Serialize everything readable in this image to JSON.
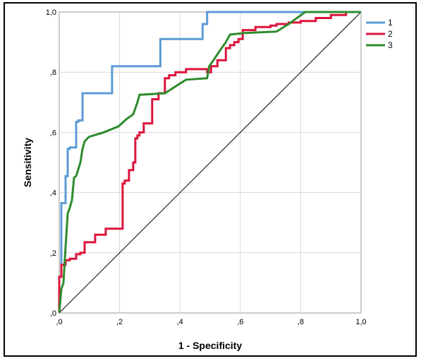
{
  "chart_data": {
    "type": "line",
    "xlabel": "1 - Specificity",
    "ylabel": "Sensitivity",
    "xlim": [
      0,
      1
    ],
    "ylim": [
      0,
      1
    ],
    "x_ticks": [
      {
        "value": 0.0,
        "label": ",0"
      },
      {
        "value": 0.2,
        "label": ",2"
      },
      {
        "value": 0.4,
        "label": ",4"
      },
      {
        "value": 0.6,
        "label": ",6"
      },
      {
        "value": 0.8,
        "label": ",8"
      },
      {
        "value": 1.0,
        "label": "1,0"
      }
    ],
    "y_ticks": [
      {
        "value": 0.0,
        "label": ",0"
      },
      {
        "value": 0.2,
        "label": ",2"
      },
      {
        "value": 0.4,
        "label": ",4"
      },
      {
        "value": 0.6,
        "label": ",6"
      },
      {
        "value": 0.8,
        "label": ",8"
      },
      {
        "value": 1.0,
        "label": "1,0"
      }
    ],
    "grid": true,
    "legend_position": "top-right",
    "reference_line": {
      "x": [
        0,
        1
      ],
      "y": [
        0,
        1
      ],
      "color": "#000000"
    },
    "series": [
      {
        "name": "1",
        "color": "#5b9bd5",
        "x": [
          0,
          0,
          0.007,
          0.007,
          0.021,
          0.021,
          0.028,
          0.028,
          0.035,
          0.035,
          0.056,
          0.056,
          0.063,
          0.063,
          0.077,
          0.077,
          0.175,
          0.175,
          0.335,
          0.335,
          0.475,
          0.475,
          0.49,
          0.49,
          1.0
        ],
        "y": [
          0,
          0.12,
          0.12,
          0.365,
          0.365,
          0.455,
          0.455,
          0.545,
          0.545,
          0.55,
          0.55,
          0.635,
          0.635,
          0.64,
          0.64,
          0.73,
          0.73,
          0.82,
          0.82,
          0.91,
          0.91,
          0.96,
          0.96,
          1.0,
          1.0
        ]
      },
      {
        "name": "2",
        "color": "#dc143c",
        "x": [
          0,
          0,
          0.007,
          0.007,
          0.021,
          0.021,
          0.035,
          0.035,
          0.056,
          0.056,
          0.07,
          0.07,
          0.084,
          0.084,
          0.119,
          0.119,
          0.154,
          0.154,
          0.21,
          0.21,
          0.217,
          0.217,
          0.231,
          0.231,
          0.245,
          0.245,
          0.252,
          0.252,
          0.259,
          0.259,
          0.266,
          0.266,
          0.28,
          0.28,
          0.308,
          0.308,
          0.329,
          0.329,
          0.35,
          0.35,
          0.364,
          0.364,
          0.385,
          0.385,
          0.42,
          0.42,
          0.49,
          0.49,
          0.503,
          0.503,
          0.524,
          0.524,
          0.552,
          0.552,
          0.566,
          0.566,
          0.58,
          0.58,
          0.594,
          0.594,
          0.608,
          0.608,
          0.65,
          0.65,
          0.7,
          0.7,
          0.72,
          0.72,
          0.76,
          0.76,
          0.8,
          0.8,
          0.85,
          0.85,
          0.9,
          0.9,
          0.95,
          0.95,
          1.0
        ],
        "y": [
          0,
          0.12,
          0.12,
          0.16,
          0.16,
          0.175,
          0.175,
          0.18,
          0.18,
          0.195,
          0.195,
          0.2,
          0.2,
          0.235,
          0.235,
          0.26,
          0.26,
          0.28,
          0.28,
          0.43,
          0.43,
          0.44,
          0.44,
          0.475,
          0.475,
          0.5,
          0.5,
          0.58,
          0.58,
          0.59,
          0.59,
          0.6,
          0.6,
          0.63,
          0.63,
          0.71,
          0.71,
          0.73,
          0.73,
          0.78,
          0.78,
          0.79,
          0.79,
          0.8,
          0.8,
          0.81,
          0.81,
          0.8,
          0.8,
          0.82,
          0.82,
          0.84,
          0.84,
          0.88,
          0.88,
          0.89,
          0.89,
          0.9,
          0.9,
          0.91,
          0.91,
          0.94,
          0.94,
          0.95,
          0.95,
          0.955,
          0.955,
          0.96,
          0.96,
          0.965,
          0.965,
          0.97,
          0.97,
          0.98,
          0.98,
          0.99,
          0.99,
          1.0,
          1.0
        ]
      },
      {
        "name": "3",
        "color": "#2e8b2e",
        "x": [
          0,
          0.007,
          0.007,
          0.014,
          0.014,
          0.021,
          0.021,
          0.028,
          0.028,
          0.035,
          0.035,
          0.042,
          0.042,
          0.049,
          0.049,
          0.056,
          0.056,
          0.07,
          0.07,
          0.077,
          0.077,
          0.084,
          0.084,
          0.098,
          0.098,
          0.147,
          0.147,
          0.196,
          0.196,
          0.224,
          0.224,
          0.245,
          0.245,
          0.259,
          0.259,
          0.266,
          0.266,
          0.35,
          0.35,
          0.42,
          0.42,
          0.49,
          0.49,
          0.497,
          0.497,
          0.511,
          0.511,
          0.531,
          0.531,
          0.545,
          0.545,
          0.552,
          0.552,
          0.566,
          0.566,
          0.615,
          0.615,
          0.72,
          0.72,
          0.76,
          0.76,
          0.815,
          0.815,
          1.0
        ],
        "y": [
          0,
          0.08,
          0.08,
          0.1,
          0.1,
          0.22,
          0.22,
          0.33,
          0.33,
          0.35,
          0.35,
          0.375,
          0.375,
          0.45,
          0.45,
          0.455,
          0.455,
          0.5,
          0.5,
          0.545,
          0.545,
          0.57,
          0.57,
          0.585,
          0.585,
          0.6,
          0.6,
          0.62,
          0.62,
          0.645,
          0.645,
          0.66,
          0.66,
          0.7,
          0.7,
          0.725,
          0.725,
          0.73,
          0.73,
          0.775,
          0.775,
          0.78,
          0.78,
          0.82,
          0.82,
          0.84,
          0.84,
          0.87,
          0.87,
          0.89,
          0.89,
          0.9,
          0.9,
          0.925,
          0.925,
          0.93,
          0.93,
          0.935,
          0.935,
          0.96,
          0.96,
          1.0,
          1.0,
          1.0
        ]
      }
    ]
  }
}
